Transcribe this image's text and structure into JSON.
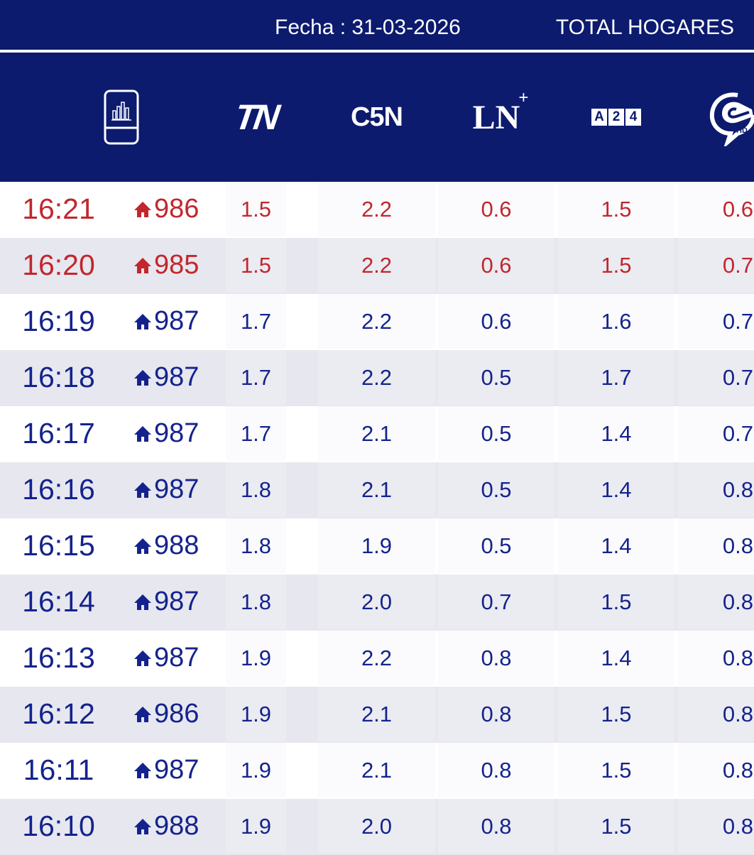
{
  "topbar": {
    "date": "Fecha : 31-03-2026",
    "total": "TOTAL HOGARES"
  },
  "header": {
    "columns": [
      {
        "name": "ratings-device-icon",
        "icon": "bar-chart-device-icon"
      },
      {
        "name": "TN",
        "logo_text": "TN"
      },
      {
        "name": "C5N",
        "logo_text": "C5N"
      },
      {
        "name": "LN+",
        "logo_text": "LN",
        "logo_sup": "+"
      },
      {
        "name": "A24",
        "logo_letters": [
          "A",
          "2",
          "4"
        ]
      },
      {
        "name": "Crónica HD",
        "icon": "cronica-hd-icon"
      }
    ]
  },
  "colors": {
    "header_bg": "#0c1b6e",
    "highlight": "#c1272d",
    "text": "#14238c",
    "stripe": "#e7e7ef"
  },
  "rows": [
    {
      "time": "16:21",
      "homes": "986",
      "tn": "1.5",
      "c5n": "2.2",
      "ln": "0.6",
      "a24": "1.5",
      "cronica": "0.6",
      "highlight": true
    },
    {
      "time": "16:20",
      "homes": "985",
      "tn": "1.5",
      "c5n": "2.2",
      "ln": "0.6",
      "a24": "1.5",
      "cronica": "0.7",
      "highlight": true
    },
    {
      "time": "16:19",
      "homes": "987",
      "tn": "1.7",
      "c5n": "2.2",
      "ln": "0.6",
      "a24": "1.6",
      "cronica": "0.7",
      "highlight": false
    },
    {
      "time": "16:18",
      "homes": "987",
      "tn": "1.7",
      "c5n": "2.2",
      "ln": "0.5",
      "a24": "1.7",
      "cronica": "0.7",
      "highlight": false
    },
    {
      "time": "16:17",
      "homes": "987",
      "tn": "1.7",
      "c5n": "2.1",
      "ln": "0.5",
      "a24": "1.4",
      "cronica": "0.7",
      "highlight": false
    },
    {
      "time": "16:16",
      "homes": "987",
      "tn": "1.8",
      "c5n": "2.1",
      "ln": "0.5",
      "a24": "1.4",
      "cronica": "0.8",
      "highlight": false
    },
    {
      "time": "16:15",
      "homes": "988",
      "tn": "1.8",
      "c5n": "1.9",
      "ln": "0.5",
      "a24": "1.4",
      "cronica": "0.8",
      "highlight": false
    },
    {
      "time": "16:14",
      "homes": "987",
      "tn": "1.8",
      "c5n": "2.0",
      "ln": "0.7",
      "a24": "1.5",
      "cronica": "0.8",
      "highlight": false
    },
    {
      "time": "16:13",
      "homes": "987",
      "tn": "1.9",
      "c5n": "2.2",
      "ln": "0.8",
      "a24": "1.4",
      "cronica": "0.8",
      "highlight": false
    },
    {
      "time": "16:12",
      "homes": "986",
      "tn": "1.9",
      "c5n": "2.1",
      "ln": "0.8",
      "a24": "1.5",
      "cronica": "0.8",
      "highlight": false
    },
    {
      "time": "16:11",
      "homes": "987",
      "tn": "1.9",
      "c5n": "2.1",
      "ln": "0.8",
      "a24": "1.5",
      "cronica": "0.8",
      "highlight": false
    },
    {
      "time": "16:10",
      "homes": "988",
      "tn": "1.9",
      "c5n": "2.0",
      "ln": "0.8",
      "a24": "1.5",
      "cronica": "0.8",
      "highlight": false
    }
  ]
}
